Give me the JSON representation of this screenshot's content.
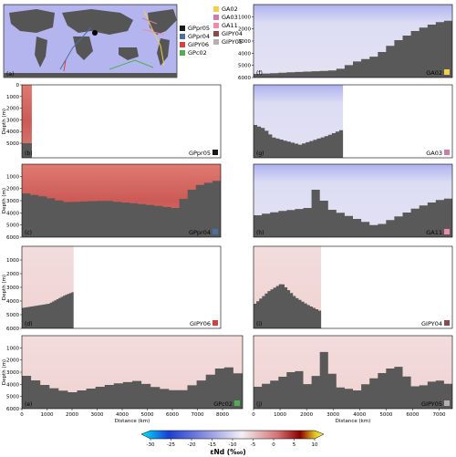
{
  "legend": {
    "col1": [
      {
        "name": "GPpr05",
        "color": "#1a1a1a"
      },
      {
        "name": "GPpr04",
        "color": "#4a6fa5"
      },
      {
        "name": "GIPY06",
        "color": "#d84040"
      },
      {
        "name": "GPc02",
        "color": "#4caf50"
      }
    ],
    "col2": [
      {
        "name": "GA02",
        "color": "#f2d04b"
      },
      {
        "name": "GA03",
        "color": "#c77fb0"
      },
      {
        "name": "GA11",
        "color": "#f08aa8"
      },
      {
        "name": "GIPY04",
        "color": "#8b4a4a"
      },
      {
        "name": "GIPY05",
        "color": "#b8b0b0"
      }
    ]
  },
  "map_label": "(a)",
  "panels": [
    {
      "id": "f",
      "label": "(f)",
      "section": "GA02",
      "swatch": "#f2d04b",
      "palette": "blue",
      "yticks": [
        "1000",
        "2000",
        "3000",
        "4000",
        "5000",
        "6000"
      ],
      "ylabel": "",
      "xticks": []
    },
    {
      "id": "b",
      "label": "(b)",
      "section": "GPpr05",
      "swatch": "#1a1a1a",
      "palette": "red",
      "yticks": [
        "0",
        "1000",
        "2000",
        "3000",
        "4000",
        "5000"
      ],
      "ylabel": "Depth (m)",
      "xticks": []
    },
    {
      "id": "g",
      "label": "(g)",
      "section": "GA03",
      "swatch": "#c77fb0",
      "palette": "blue",
      "yticks": [],
      "ylabel": "",
      "xticks": []
    },
    {
      "id": "c",
      "label": "(c)",
      "section": "GPpr04",
      "swatch": "#4a6fa5",
      "palette": "red",
      "yticks": [
        "1000",
        "2000",
        "3000",
        "4000",
        "5000",
        "6000"
      ],
      "ylabel": "Depth (m)",
      "xticks": []
    },
    {
      "id": "h",
      "label": "(h)",
      "section": "GA11",
      "swatch": "#f08aa8",
      "palette": "blue",
      "yticks": [],
      "ylabel": "",
      "xticks": []
    },
    {
      "id": "d",
      "label": "(d)",
      "section": "GIPY06",
      "swatch": "#d84040",
      "palette": "pink",
      "yticks": [
        "1000",
        "2000",
        "3000",
        "4000",
        "5000",
        "6000"
      ],
      "ylabel": "Depth (m)",
      "xticks": []
    },
    {
      "id": "i",
      "label": "(i)",
      "section": "GIPY04",
      "swatch": "#8b4a4a",
      "palette": "pink",
      "yticks": [],
      "ylabel": "",
      "xticks": []
    },
    {
      "id": "e",
      "label": "(e)",
      "section": "GPc02",
      "swatch": "#4caf50",
      "palette": "pink",
      "yticks": [
        "1000",
        "2000",
        "3000",
        "4000",
        "5000",
        "6000"
      ],
      "ylabel": "Depth (m)",
      "xticks": [
        "0",
        "1000",
        "2000",
        "3000",
        "4000",
        "5000",
        "6000",
        "7000",
        "8000"
      ]
    },
    {
      "id": "j",
      "label": "(j)",
      "section": "GIPY05",
      "swatch": "#b8b0b0",
      "palette": "pink",
      "yticks": [],
      "ylabel": "",
      "xticks": [
        "0",
        "1000",
        "2000",
        "3000",
        "4000",
        "5000",
        "6000",
        "7000"
      ]
    }
  ],
  "xlabel": "Distance (km)",
  "colorbar": {
    "ticks": [
      "-30",
      "-25",
      "-20",
      "-15",
      "-10",
      "-5",
      "0",
      "5",
      "10"
    ],
    "label": "εNd (‰₀)",
    "range": [
      -30,
      10
    ]
  },
  "chart_data": {
    "type": "heatmap",
    "ylabel": "Depth (m)",
    "xlabel": "Distance (km)",
    "colorbar_label": "εNd (‰₀)",
    "colorbar_range": [
      -30,
      10
    ],
    "colorbar_ticks": [
      -30,
      -25,
      -20,
      -15,
      -10,
      -5,
      0,
      5,
      10
    ],
    "sections": [
      {
        "name": "GA02",
        "panel": "(f)",
        "typical_eNd": -13
      },
      {
        "name": "GPpr05",
        "panel": "(b)",
        "typical_eNd": -4
      },
      {
        "name": "GA03",
        "panel": "(g)",
        "typical_eNd": -13
      },
      {
        "name": "GPpr04",
        "panel": "(c)",
        "typical_eNd": -4,
        "xlim": [
          0,
          8000
        ]
      },
      {
        "name": "GA11",
        "panel": "(h)",
        "typical_eNd": -12
      },
      {
        "name": "GIPY06",
        "panel": "(d)",
        "typical_eNd": -8,
        "xlim": [
          0,
          2000
        ]
      },
      {
        "name": "GIPY04",
        "panel": "(i)",
        "typical_eNd": -8
      },
      {
        "name": "GPc02",
        "panel": "(e)",
        "typical_eNd": -7,
        "xlim": [
          0,
          8800
        ],
        "ylim": [
          0,
          6000
        ]
      },
      {
        "name": "GIPY05",
        "panel": "(j)",
        "typical_eNd": -8,
        "xlim": [
          0,
          7500
        ],
        "ylim": [
          0,
          6000
        ]
      }
    ]
  }
}
